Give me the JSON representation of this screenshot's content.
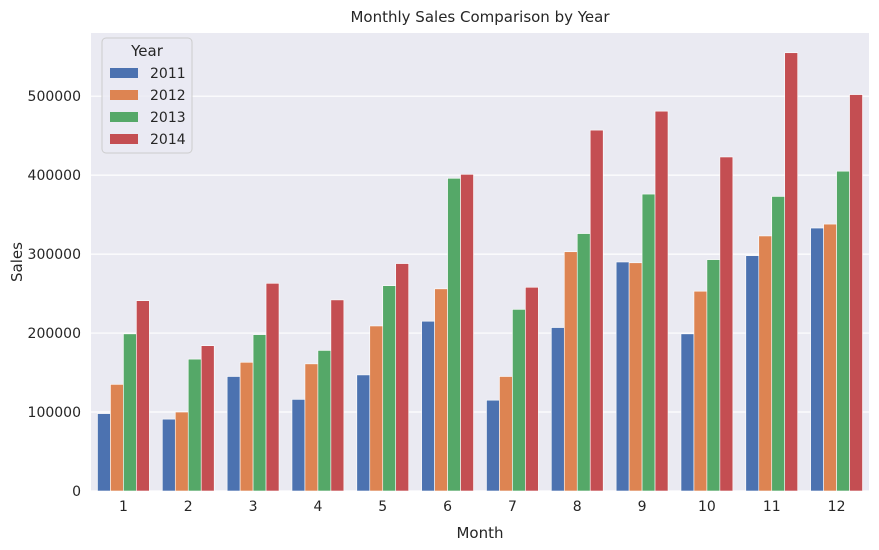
{
  "chart_data": {
    "type": "bar",
    "title": "Monthly Sales Comparison by Year",
    "xlabel": "Month",
    "ylabel": "Sales",
    "categories": [
      "1",
      "2",
      "3",
      "4",
      "5",
      "6",
      "7",
      "8",
      "9",
      "10",
      "11",
      "12"
    ],
    "ylim": [
      0,
      580000
    ],
    "yticks": [
      0,
      100000,
      200000,
      300000,
      400000,
      500000
    ],
    "grid": true,
    "legend": {
      "title": "Year",
      "placement": "top-left"
    },
    "series": [
      {
        "name": "2011",
        "color": "#4c72b0",
        "values": [
          98000,
          91000,
          145000,
          116000,
          147000,
          215000,
          115000,
          207000,
          290000,
          199000,
          298000,
          333000
        ]
      },
      {
        "name": "2012",
        "color": "#dd8452",
        "values": [
          135000,
          100000,
          163000,
          161000,
          209000,
          256000,
          145000,
          303000,
          289000,
          253000,
          323000,
          338000
        ]
      },
      {
        "name": "2013",
        "color": "#55a868",
        "values": [
          199000,
          167000,
          198000,
          178000,
          260000,
          396000,
          230000,
          326000,
          376000,
          293000,
          373000,
          405000
        ]
      },
      {
        "name": "2014",
        "color": "#c44e52",
        "values": [
          241000,
          184000,
          263000,
          242000,
          288000,
          401000,
          258000,
          457000,
          481000,
          423000,
          555000,
          502000
        ]
      }
    ]
  }
}
